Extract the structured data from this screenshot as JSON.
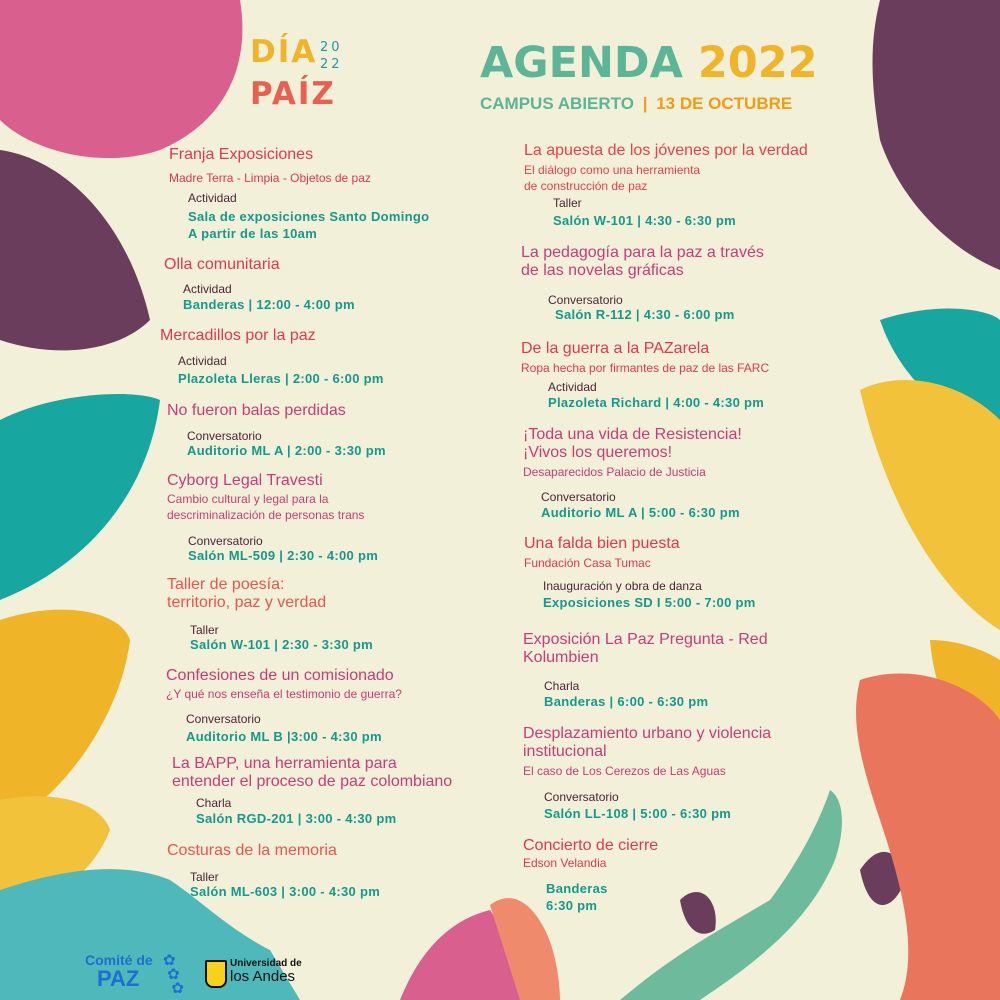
{
  "header": {
    "logo_dia": "DÍA",
    "logo_paiz": "PAÍZ",
    "logo_year_top": "20",
    "logo_year_bottom": "22",
    "title_word": "AGENDA",
    "title_year": "2022",
    "subtitle_place": "CAMPUS ABIERTO",
    "subtitle_sep": "|",
    "subtitle_date": "13 DE OCTUBRE"
  },
  "colors": {
    "background": "#f3f0d9",
    "teal": "#149a8c",
    "title_green": "#5bb596",
    "yellow": "#f0b429",
    "coral": "#e8604f",
    "pink": "#d93a5a",
    "purple": "#6b3d5c"
  },
  "left_column": [
    {
      "title": [
        "Franja Exposiciones"
      ],
      "subtitle": [
        "Madre Terra - Limpia - Objetos de paz"
      ],
      "type": "Actividad",
      "location": [
        "Sala de exposiciones Santo Domingo",
        "A partir de las 10am"
      ]
    },
    {
      "title": [
        "Olla comunitaria"
      ],
      "subtitle": [],
      "type": "Actividad",
      "location": [
        "Banderas | 12:00 - 4:00 pm"
      ]
    },
    {
      "title": [
        "Mercadillos por la paz"
      ],
      "subtitle": [],
      "type": "Actividad",
      "location": [
        "Plazoleta Lleras | 2:00 - 6:00 pm"
      ]
    },
    {
      "title": [
        "No fueron balas perdidas"
      ],
      "subtitle": [],
      "type": "Conversatorio",
      "location": [
        "Auditorio ML A | 2:00 - 3:30 pm"
      ]
    },
    {
      "title": [
        "Cyborg Legal Travesti"
      ],
      "subtitle": [
        "Cambio cultural y legal para la",
        "descriminalización de personas trans"
      ],
      "type": "Conversatorio",
      "location": [
        "Salón ML-509 | 2:30 - 4:00 pm"
      ]
    },
    {
      "title": [
        "Taller de poesía:",
        "territorio, paz y verdad"
      ],
      "subtitle": [],
      "type": "Taller",
      "location": [
        "Salón W-101 | 2:30 - 3:30 pm"
      ]
    },
    {
      "title": [
        "Confesiones de un comisionado"
      ],
      "subtitle": [
        "¿Y qué nos enseña el testimonio de guerra?"
      ],
      "type": "Conversatorio",
      "location": [
        "Auditorio ML B |3:00 - 4:30 pm"
      ]
    },
    {
      "title": [
        "La BAPP, una herramienta para",
        "entender el proceso de paz colombiano"
      ],
      "subtitle": [],
      "type": "Charla",
      "location": [
        "Salón RGD-201 | 3:00 - 4:30 pm"
      ]
    },
    {
      "title": [
        "Costuras de la memoria"
      ],
      "subtitle": [],
      "type": "Taller",
      "location": [
        "Salón ML-603 | 3:00 - 4:30 pm"
      ]
    }
  ],
  "right_column": [
    {
      "title": [
        "La apuesta de los jóvenes por la verdad"
      ],
      "subtitle": [
        "El diálogo como una herramienta",
        "de construcción de paz"
      ],
      "type": "Taller",
      "location": [
        "Salón W-101 | 4:30 - 6:30 pm"
      ]
    },
    {
      "title": [
        "La pedagogía para la paz a través",
        "de las novelas gráficas"
      ],
      "subtitle": [],
      "type": "Conversatorio",
      "location": [
        "Salón R-112 | 4:30 - 6:00 pm"
      ]
    },
    {
      "title": [
        "De la guerra a la PAZarela"
      ],
      "subtitle": [
        "Ropa hecha por firmantes de paz de las FARC"
      ],
      "type": "Actividad",
      "location": [
        "Plazoleta Richard | 4:00 - 4:30 pm"
      ]
    },
    {
      "title": [
        "¡Toda una vida de Resistencia!",
        "¡Vivos los queremos!"
      ],
      "subtitle": [
        "Desaparecidos Palacio de Justicia"
      ],
      "type": "Conversatorio",
      "location": [
        "Auditorio ML A | 5:00 - 6:30 pm"
      ]
    },
    {
      "title": [
        "Una falda bien puesta"
      ],
      "subtitle": [
        "Fundación Casa Tumac"
      ],
      "type": "Inauguración y obra de danza",
      "location": [
        "Exposiciones SD  I  5:00 - 7:00 pm"
      ]
    },
    {
      "title": [
        "Exposición La Paz Pregunta - Red",
        "Kolumbien"
      ],
      "subtitle": [],
      "type": "Charla",
      "location": [
        "Banderas | 6:00 - 6:30 pm"
      ]
    },
    {
      "title": [
        "Desplazamiento urbano y violencia",
        "institucional"
      ],
      "subtitle": [
        "El caso de Los Cerezos de Las Aguas"
      ],
      "type": "Conversatorio",
      "location": [
        "Salón LL-108 | 5:00 - 6:30 pm"
      ]
    },
    {
      "title": [
        "Concierto de cierre"
      ],
      "subtitle": [
        "Edson Velandia"
      ],
      "type": "",
      "location": [
        "Banderas",
        "6:30 pm"
      ]
    }
  ],
  "footer": {
    "comite_line1": "Comité de",
    "comite_line2": "PAZ",
    "uniandes_line1": "Universidad de",
    "uniandes_line2": "los Andes",
    "flower_icon": "flower-icon",
    "shield_icon": "uniandes-shield-icon"
  }
}
